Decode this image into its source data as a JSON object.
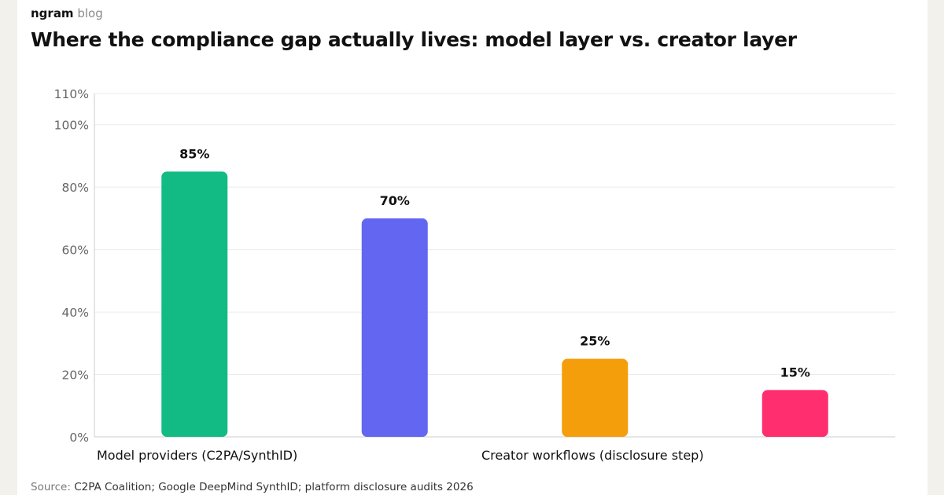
{
  "brand": {
    "name": "ngram",
    "section": "blog"
  },
  "title": "Where the compliance gap actually lives: model layer vs. creator layer",
  "source": {
    "label": "Source:",
    "text": "C2PA Coalition; Google DeepMind SynthID; platform disclosure audits 2026"
  },
  "colors": {
    "grid": "#ebebeb",
    "axis": "#cccccc",
    "tick_text": "#666666",
    "bar_label_text": "#111111"
  },
  "chart_data": {
    "type": "bar",
    "title": "Where the compliance gap actually lives: model layer vs. creator layer",
    "xlabel": "",
    "ylabel": "",
    "ylim": [
      0,
      110
    ],
    "yticks": [
      0,
      20,
      40,
      60,
      80,
      100,
      110
    ],
    "ytick_labels": [
      "0%",
      "20%",
      "40%",
      "60%",
      "80%",
      "100%",
      "110%"
    ],
    "grid": true,
    "legend": "none",
    "group_labels": [
      "Model providers (C2PA/SynthID)",
      "Creator workflows (disclosure step)"
    ],
    "bars": [
      {
        "value": 85,
        "label": "85%",
        "color": "#12bb83",
        "group": 0
      },
      {
        "value": 70,
        "label": "70%",
        "color": "#6366f1",
        "group": 0
      },
      {
        "value": 25,
        "label": "25%",
        "color": "#f59e0b",
        "group": 1
      },
      {
        "value": 15,
        "label": "15%",
        "color": "#ff2e6e",
        "group": 1
      }
    ]
  }
}
